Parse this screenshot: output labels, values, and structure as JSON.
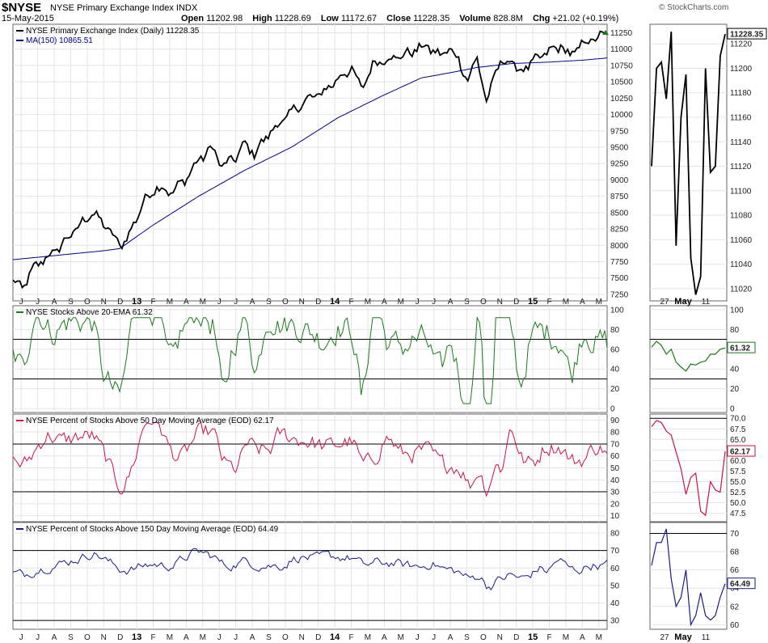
{
  "header": {
    "symbol": "$NYSE",
    "name": "NYSE Primary Exchange Index  INDX",
    "date": "15-May-2015",
    "open_label": "Open",
    "open": "11202.98",
    "high_label": "High",
    "high": "11228.69",
    "low_label": "Low",
    "low": "11172.67",
    "close_label": "Close",
    "close": "11228.35",
    "volume_label": "Volume",
    "volume": "828.8M",
    "chg_label": "Chg",
    "chg": "+21.02 (+0.19%)",
    "brand": "© StockCharts.com"
  },
  "colors": {
    "price": "#000000",
    "ma": "#00008b",
    "ema20": "#1a7a1a",
    "ma50": "#cc1144",
    "ma150": "#1a1a8a",
    "grid": "#e4e4e4"
  },
  "chart_data": [
    {
      "type": "line",
      "id": "price",
      "legend": [
        "NYSE Primary Exchange Index (Daily) 11228.35",
        "MA(150) 10865.51"
      ],
      "y_ticks": [
        "7250",
        "7500",
        "7750",
        "8000",
        "8250",
        "8500",
        "8750",
        "9000",
        "9250",
        "9500",
        "9750",
        "10000",
        "10250",
        "10500",
        "10750",
        "11000",
        "11250"
      ],
      "ylim": [
        7150,
        11380
      ],
      "last_value_label": "11228.35",
      "x_months": [
        "J",
        "J",
        "A",
        "S",
        "O",
        "N",
        "D",
        "13",
        "F",
        "M",
        "A",
        "M",
        "J",
        "J",
        "A",
        "S",
        "O",
        "N",
        "D",
        "14",
        "F",
        "M",
        "A",
        "M",
        "J",
        "J",
        "A",
        "S",
        "O",
        "N",
        "D",
        "15",
        "F",
        "M",
        "A",
        "M"
      ],
      "series_keypoints": {
        "price": [
          [
            0,
            7450
          ],
          [
            4,
            7350
          ],
          [
            10,
            7700
          ],
          [
            18,
            7900
          ],
          [
            26,
            8200
          ],
          [
            34,
            8500
          ],
          [
            40,
            8300
          ],
          [
            46,
            8000
          ],
          [
            50,
            8150
          ],
          [
            56,
            8650
          ],
          [
            62,
            8900
          ],
          [
            68,
            8800
          ],
          [
            74,
            9000
          ],
          [
            80,
            9300
          ],
          [
            86,
            9500
          ],
          [
            90,
            9200
          ],
          [
            96,
            9350
          ],
          [
            100,
            9550
          ],
          [
            104,
            9400
          ],
          [
            110,
            9700
          ],
          [
            116,
            9900
          ],
          [
            122,
            10100
          ],
          [
            128,
            10250
          ],
          [
            134,
            10350
          ],
          [
            140,
            10550
          ],
          [
            146,
            10700
          ],
          [
            150,
            10400
          ],
          [
            156,
            10800
          ],
          [
            162,
            10850
          ],
          [
            168,
            10900
          ],
          [
            174,
            11000
          ],
          [
            178,
            11050
          ],
          [
            184,
            10900
          ],
          [
            188,
            11000
          ],
          [
            192,
            10850
          ],
          [
            196,
            10500
          ],
          [
            200,
            10900
          ],
          [
            204,
            10150
          ],
          [
            208,
            10700
          ],
          [
            214,
            10850
          ],
          [
            218,
            10650
          ],
          [
            224,
            10800
          ],
          [
            230,
            10950
          ],
          [
            236,
            11050
          ],
          [
            240,
            10900
          ],
          [
            246,
            11100
          ],
          [
            250,
            11150
          ],
          [
            256,
            11228
          ]
        ],
        "ma150": [
          [
            0,
            7780
          ],
          [
            20,
            7850
          ],
          [
            40,
            7920
          ],
          [
            46,
            7950
          ],
          [
            60,
            8300
          ],
          [
            80,
            8750
          ],
          [
            100,
            9150
          ],
          [
            120,
            9500
          ],
          [
            140,
            9950
          ],
          [
            160,
            10300
          ],
          [
            176,
            10560
          ],
          [
            190,
            10650
          ],
          [
            200,
            10720
          ],
          [
            215,
            10780
          ],
          [
            230,
            10800
          ],
          [
            245,
            10830
          ],
          [
            256,
            10865
          ]
        ]
      },
      "zoom": {
        "y_ticks": [
          "11020",
          "11040",
          "11060",
          "11080",
          "11100",
          "11120",
          "11140",
          "11160",
          "11180",
          "11200",
          "11220"
        ],
        "ylim": [
          11010,
          11236
        ],
        "x_labels": [
          "27",
          "May",
          "11"
        ],
        "values": [
          11120,
          11200,
          11205,
          11175,
          11230,
          11055,
          11160,
          11195,
          11045,
          11015,
          11030,
          11200,
          11115,
          11120,
          11210,
          11228
        ]
      }
    },
    {
      "type": "line",
      "id": "ema20",
      "legend": "NYSE Stocks Above 20-EMA 61.32",
      "y_ticks": [
        "0",
        "20",
        "40",
        "60",
        "80",
        "100"
      ],
      "ylim": [
        -4,
        104
      ],
      "ref_lines": [
        30,
        70
      ],
      "last_value_label": "61.32",
      "values_seed": 61.32,
      "zoom": {
        "values": [
          62,
          68,
          64,
          55,
          60,
          47,
          42,
          38,
          45,
          44,
          47,
          48,
          55,
          55,
          60,
          61.32
        ]
      }
    },
    {
      "type": "line",
      "id": "ma50",
      "legend": "NYSE Percent of Stocks Above 50 Day Moving Average (EOD) 62.17",
      "y_ticks": [
        "10",
        "20",
        "30",
        "40",
        "50",
        "60",
        "70",
        "80",
        "90"
      ],
      "ylim": [
        5,
        95
      ],
      "ref_lines": [
        30,
        70
      ],
      "last_value_label": "62.17",
      "zoom": {
        "y_ticks": [
          "47.5",
          "50.0",
          "52.5",
          "55.0",
          "57.5",
          "60.0",
          "62.5",
          "65.0",
          "67.5",
          "70.0"
        ],
        "ylim": [
          45.5,
          71
        ],
        "ref_lines": [
          70
        ],
        "values": [
          68,
          69.5,
          69,
          67,
          66,
          62,
          58,
          52,
          56,
          57,
          48,
          47,
          55,
          53,
          52.5,
          62.17
        ]
      }
    },
    {
      "type": "line",
      "id": "ma150pct",
      "legend": "NYSE Percent of Stocks Above 150 Day Moving Average (EOD) 64.49",
      "y_ticks": [
        "30",
        "40",
        "50",
        "60",
        "70",
        "80"
      ],
      "ylim": [
        25,
        86
      ],
      "ref_lines": [
        30,
        70
      ],
      "last_value_label": "64.49",
      "zoom": {
        "y_ticks": [
          "60",
          "62",
          "64",
          "66",
          "68",
          "70"
        ],
        "ylim": [
          59.5,
          71.2
        ],
        "ref_lines": [
          70
        ],
        "values": [
          66.5,
          69,
          69,
          70.5,
          65,
          62,
          63,
          66,
          60,
          61,
          63.5,
          61,
          60.5,
          61,
          63,
          64.49
        ]
      }
    }
  ]
}
